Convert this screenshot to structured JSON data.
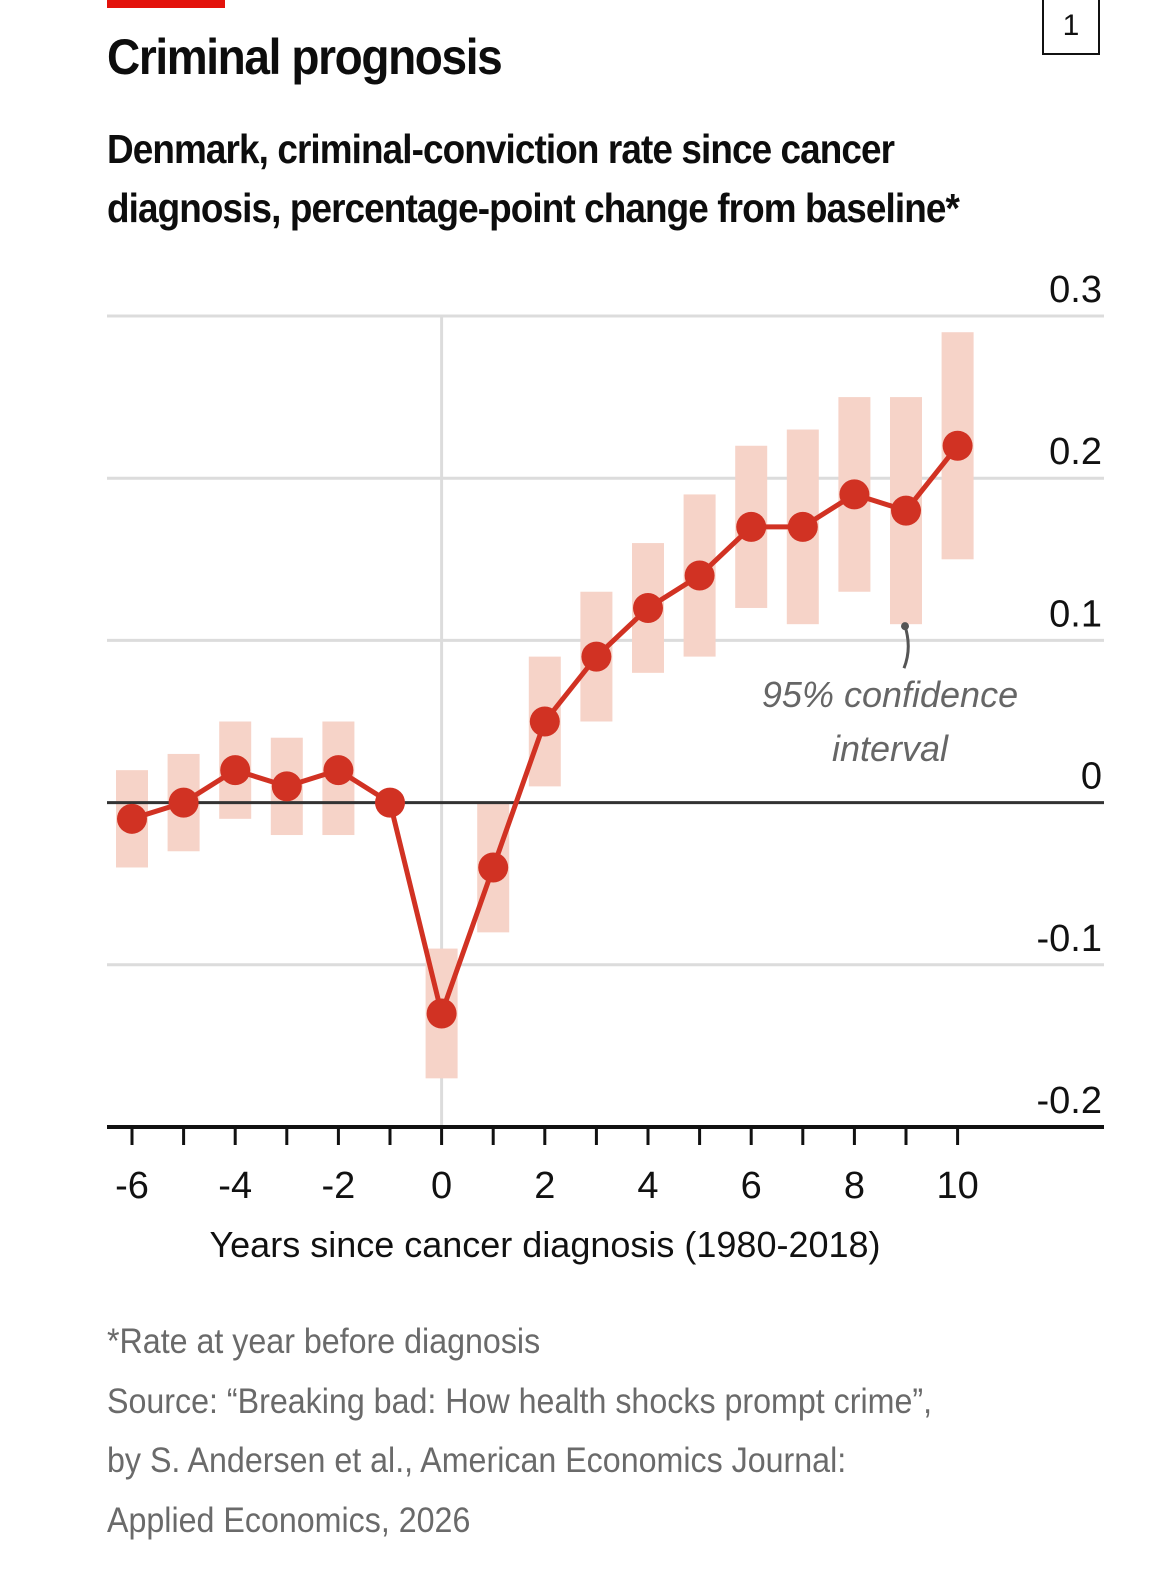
{
  "header": {
    "chart_number": "1",
    "title": "Criminal prognosis",
    "subtitle_lines": [
      "Denmark, criminal-conviction rate since cancer",
      "diagnosis, percentage-point change from baseline*"
    ]
  },
  "colors": {
    "accent": "#e3120b",
    "line": "#d13223",
    "ci_band": "#f6d3c8",
    "grid": "#dcdcdc",
    "zero_line": "#333333",
    "annotation": "#666666"
  },
  "chart_data": {
    "type": "line",
    "title": "Criminal prognosis",
    "subtitle": "Denmark, criminal-conviction rate since cancer diagnosis, percentage-point change from baseline*",
    "xlabel": "Years since cancer diagnosis (1980-2018)",
    "ylabel": "",
    "xlim": [
      -6,
      10
    ],
    "ylim": [
      -0.2,
      0.3
    ],
    "x_tick_labels": [
      "-6",
      "-4",
      "-2",
      "0",
      "2",
      "4",
      "6",
      "8",
      "10"
    ],
    "x_tick_values": [
      -6,
      -4,
      -2,
      0,
      2,
      4,
      6,
      8,
      10
    ],
    "y_tick_labels": [
      "0.3",
      "0.2",
      "0.1",
      "0",
      "-0.1",
      "-0.2"
    ],
    "y_tick_values": [
      0.3,
      0.2,
      0.1,
      0,
      -0.1,
      -0.2
    ],
    "grid": true,
    "y_axis_side": "right",
    "x": [
      -6,
      -5,
      -4,
      -3,
      -2,
      -1,
      0,
      1,
      2,
      3,
      4,
      5,
      6,
      7,
      8,
      9,
      10
    ],
    "series": [
      {
        "name": "Point estimate",
        "values": [
          -0.01,
          0.0,
          0.02,
          0.01,
          0.02,
          0.0,
          -0.13,
          -0.04,
          0.05,
          0.09,
          0.12,
          0.14,
          0.17,
          0.17,
          0.19,
          0.18,
          0.22
        ]
      },
      {
        "name": "95% confidence interval (lower)",
        "values": [
          -0.04,
          -0.03,
          -0.01,
          -0.02,
          -0.02,
          null,
          -0.17,
          -0.08,
          0.01,
          0.05,
          0.08,
          0.09,
          0.12,
          0.11,
          0.13,
          0.11,
          0.15
        ]
      },
      {
        "name": "95% confidence interval (upper)",
        "values": [
          0.02,
          0.03,
          0.05,
          0.04,
          0.05,
          null,
          -0.09,
          0.0,
          0.09,
          0.13,
          0.16,
          0.19,
          0.22,
          0.23,
          0.25,
          0.25,
          0.29
        ]
      }
    ],
    "annotations": [
      {
        "text_lines": [
          "95% confidence",
          "interval"
        ],
        "points_to_x": 9,
        "points_to": "lower end of confidence interval"
      }
    ],
    "vertical_reference_x": 0
  },
  "footer": {
    "lines": [
      "*Rate at year before diagnosis",
      "Source: “Breaking bad: How health shocks prompt crime”,",
      "by S. Andersen et al., American Economics Journal:",
      "Applied Economics, 2026"
    ]
  }
}
